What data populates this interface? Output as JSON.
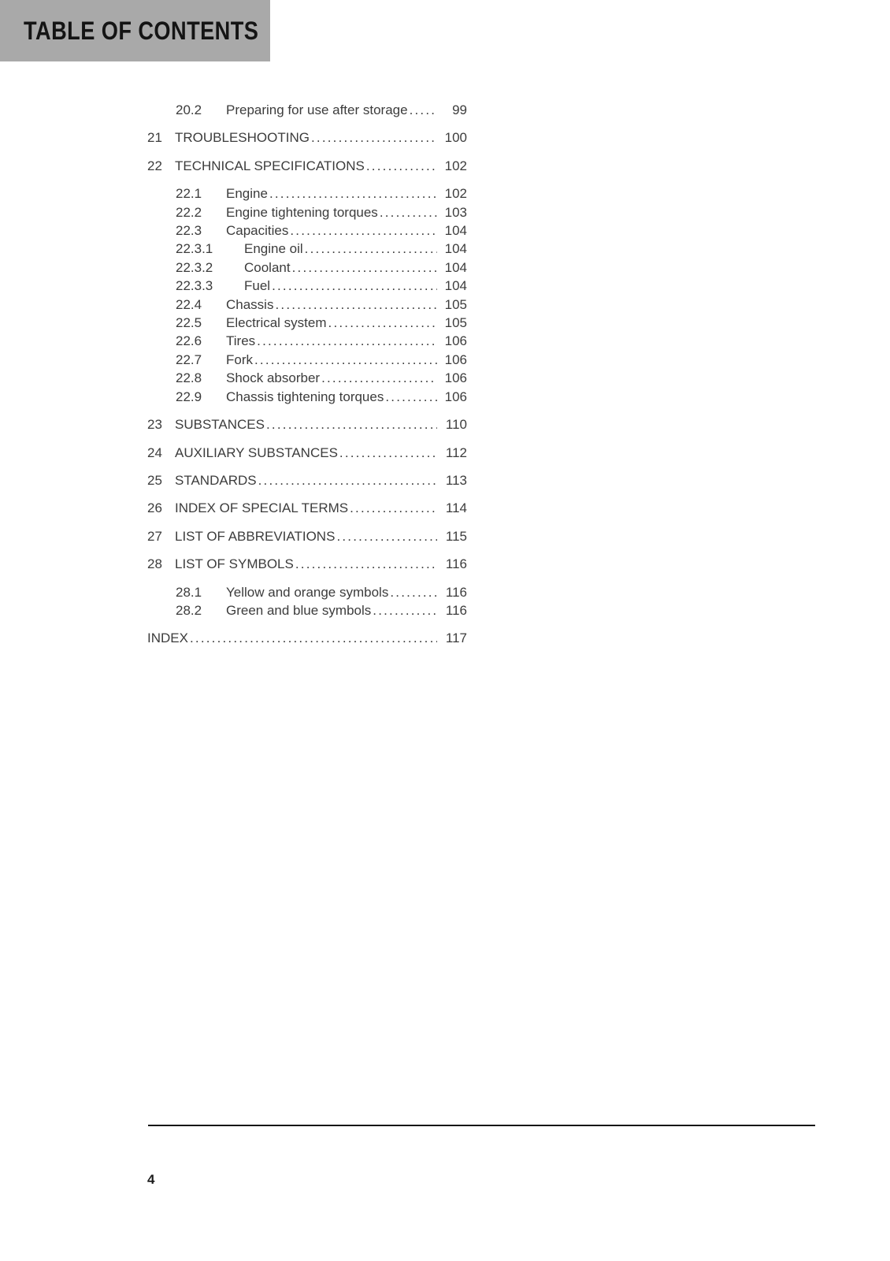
{
  "header": {
    "title": "TABLE OF CONTENTS"
  },
  "footer": {
    "page_number": "4"
  },
  "colors": {
    "header_bg": "#a9a9a9",
    "header_text": "#141414",
    "body_text": "#3c3c3c",
    "rule_color": "#161616"
  },
  "toc": {
    "entries": [
      {
        "level": "section",
        "number": "20.2",
        "title": "Preparing for use after storage",
        "page": "99"
      },
      {
        "level": "chapter",
        "number": "21",
        "title": "TROUBLESHOOTING",
        "page": "100"
      },
      {
        "level": "chapter",
        "number": "22",
        "title": "TECHNICAL SPECIFICATIONS",
        "page": "102"
      },
      {
        "level": "section",
        "number": "22.1",
        "title": "Engine",
        "page": "102"
      },
      {
        "level": "section",
        "number": "22.2",
        "title": "Engine tightening torques",
        "page": "103"
      },
      {
        "level": "section",
        "number": "22.3",
        "title": "Capacities",
        "page": "104"
      },
      {
        "level": "subsection",
        "number": "22.3.1",
        "title": "Engine oil",
        "page": "104"
      },
      {
        "level": "subsection",
        "number": "22.3.2",
        "title": "Coolant",
        "page": "104"
      },
      {
        "level": "subsection",
        "number": "22.3.3",
        "title": "Fuel",
        "page": "104"
      },
      {
        "level": "section",
        "number": "22.4",
        "title": "Chassis",
        "page": "105"
      },
      {
        "level": "section",
        "number": "22.5",
        "title": "Electrical system",
        "page": "105"
      },
      {
        "level": "section",
        "number": "22.6",
        "title": "Tires",
        "page": "106"
      },
      {
        "level": "section",
        "number": "22.7",
        "title": "Fork",
        "page": "106"
      },
      {
        "level": "section",
        "number": "22.8",
        "title": "Shock absorber",
        "page": "106"
      },
      {
        "level": "section",
        "number": "22.9",
        "title": "Chassis tightening torques",
        "page": "106"
      },
      {
        "level": "chapter",
        "number": "23",
        "title": "SUBSTANCES",
        "page": "110"
      },
      {
        "level": "chapter",
        "number": "24",
        "title": "AUXILIARY SUBSTANCES",
        "page": "112"
      },
      {
        "level": "chapter",
        "number": "25",
        "title": "STANDARDS",
        "page": "113"
      },
      {
        "level": "chapter",
        "number": "26",
        "title": "INDEX OF SPECIAL TERMS",
        "page": "114"
      },
      {
        "level": "chapter",
        "number": "27",
        "title": "LIST OF ABBREVIATIONS",
        "page": "115"
      },
      {
        "level": "chapter",
        "number": "28",
        "title": "LIST OF SYMBOLS",
        "page": "116"
      },
      {
        "level": "section",
        "number": "28.1",
        "title": "Yellow and orange symbols",
        "page": "116"
      },
      {
        "level": "section",
        "number": "28.2",
        "title": "Green and blue symbols",
        "page": "116"
      },
      {
        "level": "index",
        "number": "",
        "title": "INDEX",
        "page": "117"
      }
    ]
  }
}
